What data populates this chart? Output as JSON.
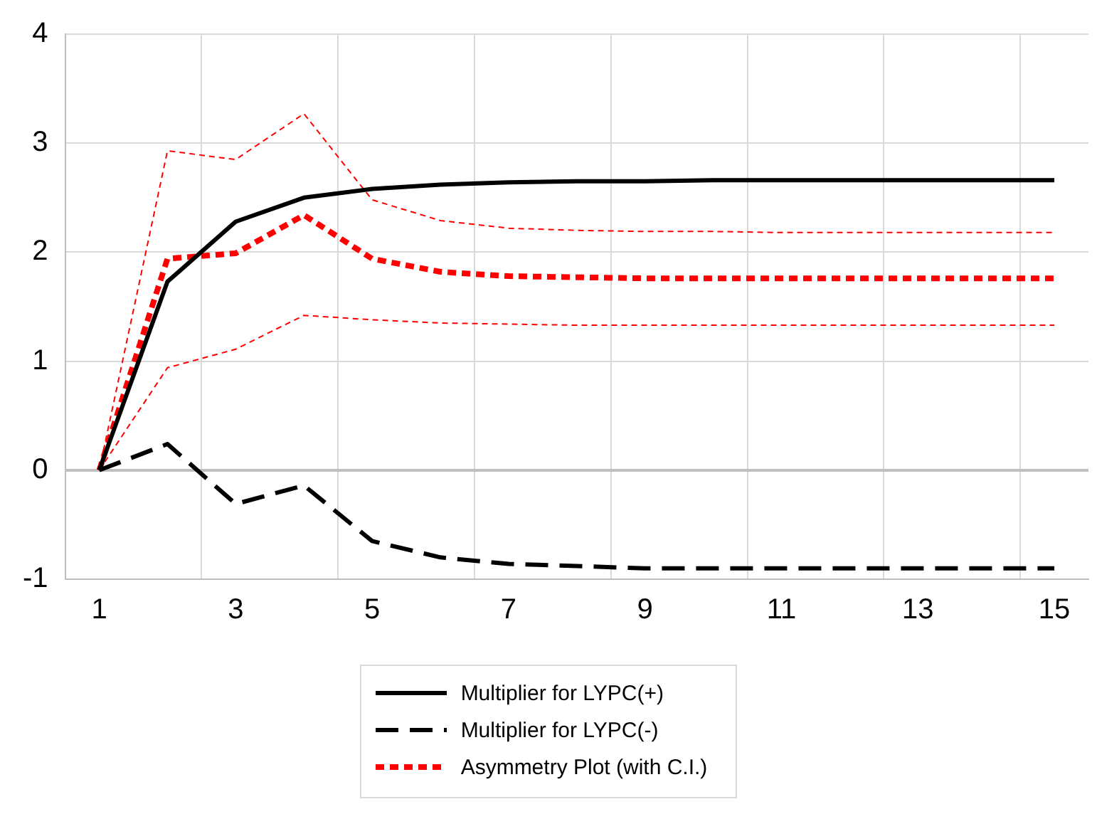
{
  "chart_data": {
    "type": "line",
    "x": [
      1,
      2,
      3,
      4,
      5,
      6,
      7,
      8,
      9,
      10,
      11,
      12,
      13,
      14,
      15
    ],
    "xlim": [
      0.5,
      15.5
    ],
    "xticks": [
      1,
      {
        "value": 2.5,
        "label": null
      },
      3,
      {
        "value": 4.5,
        "label": null
      },
      5,
      {
        "value": 6.5,
        "label": null
      },
      7,
      {
        "value": 8.5,
        "label": null
      },
      9,
      {
        "value": 10.5,
        "label": null
      },
      11,
      {
        "value": 12.5,
        "label": null
      },
      13,
      {
        "value": 14.5,
        "label": null
      },
      15
    ],
    "ylim": [
      -1,
      4
    ],
    "yticks": [
      -1,
      0,
      1,
      2,
      3,
      4
    ],
    "grid": true,
    "legend": "bottom",
    "marker": "none",
    "series": [
      {
        "name": "Multiplier for LYPC(+)",
        "color": "#000000",
        "line_style": "solid",
        "values": [
          0,
          1.73,
          2.28,
          2.5,
          2.58,
          2.62,
          2.64,
          2.65,
          2.65,
          2.66,
          2.66,
          2.66,
          2.66,
          2.66,
          2.66
        ]
      },
      {
        "name": "Multiplier for LYPC(-)",
        "color": "#000000",
        "line_style": "dashed",
        "values": [
          0,
          0.24,
          -0.31,
          -0.14,
          -0.65,
          -0.8,
          -0.86,
          -0.88,
          -0.9,
          -0.9,
          -0.9,
          -0.9,
          -0.9,
          -0.9,
          -0.9
        ]
      },
      {
        "name": "Asymmetry Plot (with C.I.)",
        "color": "#ff0000",
        "line_style": "dotted",
        "values": [
          0,
          1.94,
          1.99,
          2.34,
          1.94,
          1.82,
          1.78,
          1.77,
          1.76,
          1.76,
          1.76,
          1.76,
          1.76,
          1.76,
          1.76
        ]
      },
      {
        "color": "#ff0000",
        "line_style": "dashed",
        "values": [
          0,
          2.93,
          2.85,
          3.27,
          2.48,
          2.29,
          2.22,
          2.2,
          2.19,
          2.19,
          2.18,
          2.18,
          2.18,
          2.18,
          2.18
        ]
      },
      {
        "color": "#ff0000",
        "line_style": "dashed",
        "values": [
          0,
          0.94,
          1.11,
          1.42,
          1.38,
          1.35,
          1.34,
          1.33,
          1.33,
          1.33,
          1.33,
          1.33,
          1.33,
          1.33,
          1.33
        ]
      }
    ]
  }
}
